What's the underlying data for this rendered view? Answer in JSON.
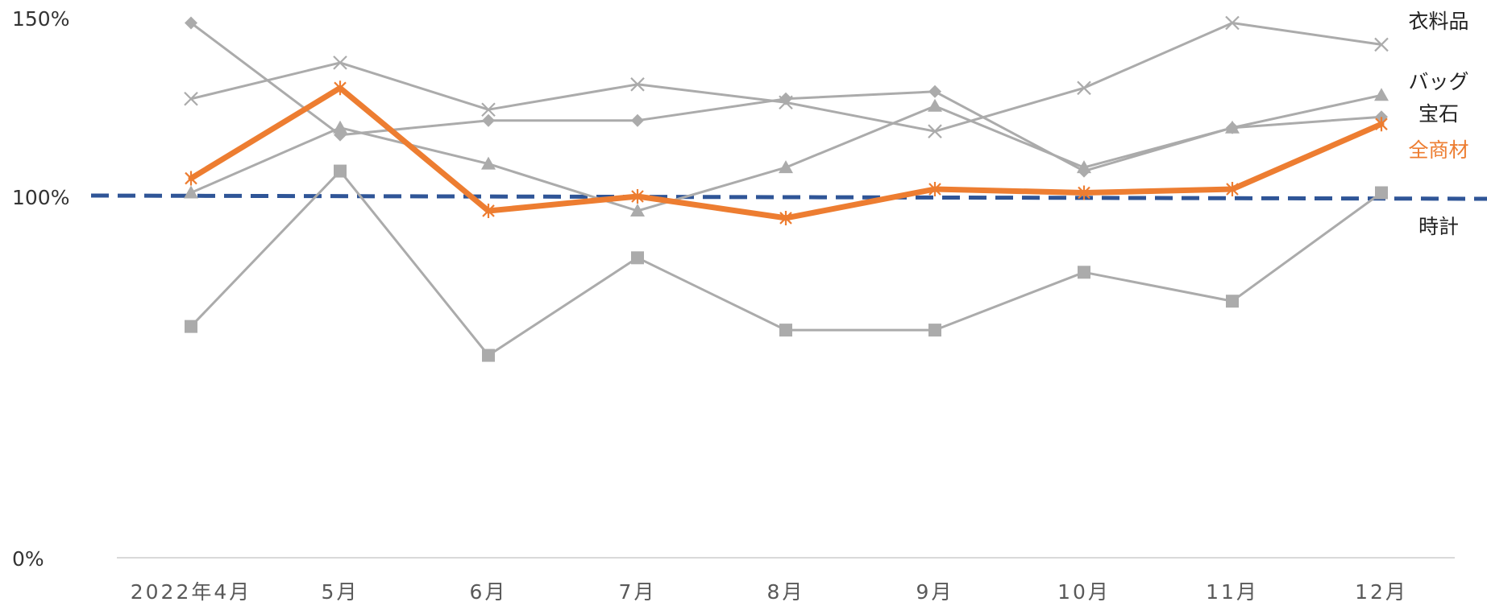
{
  "chart_data": {
    "type": "line",
    "title": "",
    "xlabel": "",
    "ylabel": "",
    "categories": [
      "2022年4月",
      "5月",
      "6月",
      "7月",
      "8月",
      "9月",
      "10月",
      "11月",
      "12月"
    ],
    "ylim": [
      0,
      150
    ],
    "yticks": [
      "0%",
      "100%",
      "150%"
    ],
    "ytick_values": [
      0,
      100,
      150
    ],
    "grid": false,
    "reference_line": {
      "value": 100,
      "color": "#2F5597",
      "style": "dashed"
    },
    "series": [
      {
        "name": "衣料品",
        "marker": "x",
        "color": "#ABABAB",
        "values": [
          127,
          137,
          124,
          131,
          126,
          118,
          130,
          148,
          142
        ]
      },
      {
        "name": "バッグ",
        "marker": "triangle",
        "color": "#ABABAB",
        "values": [
          101,
          119,
          109,
          96,
          108,
          125,
          108,
          119,
          128
        ]
      },
      {
        "name": "宝石",
        "marker": "diamond",
        "color": "#ABABAB",
        "values": [
          148,
          117,
          121,
          121,
          127,
          129,
          107,
          119,
          122
        ]
      },
      {
        "name": "全商材",
        "marker": "asterisk",
        "color": "#ED7D31",
        "highlight": true,
        "values": [
          105,
          130,
          96,
          100,
          94,
          102,
          101,
          102,
          120
        ]
      },
      {
        "name": "時計",
        "marker": "square",
        "color": "#ABABAB",
        "values": [
          64,
          107,
          56,
          83,
          63,
          63,
          79,
          71,
          101
        ]
      }
    ]
  }
}
